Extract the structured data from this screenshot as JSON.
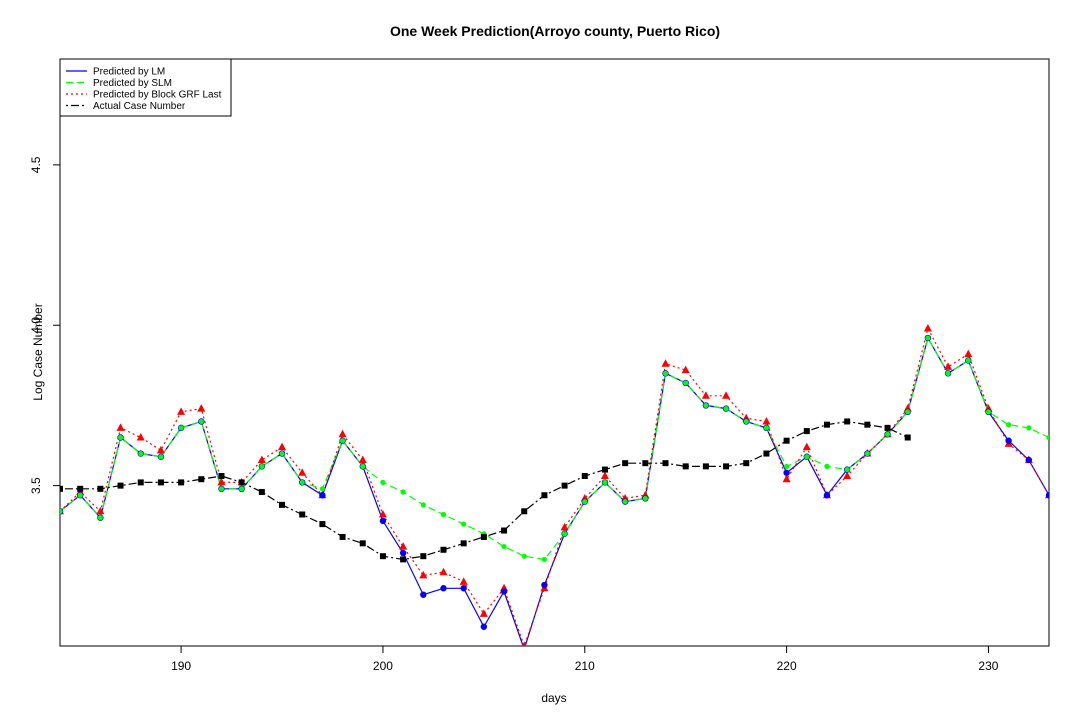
{
  "chart_data": {
    "type": "line",
    "title": "One Week Prediction(Arroyo county, Puerto Rico)",
    "xlabel": "days",
    "ylabel": "Log Case Number",
    "xlim": [
      184,
      233
    ],
    "ylim": [
      3.0,
      4.83
    ],
    "xticks": [
      190,
      200,
      210,
      220,
      230
    ],
    "yticks": [
      3.5,
      4.0,
      4.5
    ],
    "legend_position": "top-left",
    "x": [
      184,
      185,
      186,
      187,
      188,
      189,
      190,
      191,
      192,
      193,
      194,
      195,
      196,
      197,
      198,
      199,
      200,
      201,
      202,
      203,
      204,
      205,
      206,
      207,
      208,
      209,
      210,
      211,
      212,
      213,
      214,
      215,
      216,
      217,
      218,
      219,
      220,
      221,
      222,
      223,
      224,
      225,
      226,
      227,
      228,
      229,
      230,
      231,
      232,
      233
    ],
    "series": [
      {
        "name": "Predicted by LM",
        "color": "#0000ff",
        "line": "solid",
        "marker": "circle",
        "values": [
          3.42,
          3.47,
          3.4,
          3.65,
          3.6,
          3.59,
          3.68,
          3.7,
          3.49,
          3.49,
          3.56,
          3.6,
          3.51,
          3.47,
          3.64,
          3.56,
          3.39,
          3.29,
          3.16,
          3.18,
          3.18,
          3.06,
          3.17,
          2.99,
          3.19,
          3.35,
          3.45,
          3.51,
          3.45,
          3.46,
          3.85,
          3.82,
          3.75,
          3.74,
          3.7,
          3.68,
          3.54,
          3.59,
          3.47,
          3.55,
          3.6,
          3.66,
          3.73,
          3.96,
          3.85,
          3.89,
          3.73,
          3.64,
          3.58,
          3.47
        ]
      },
      {
        "name": "Predicted by SLM",
        "color": "#00ff00",
        "line": "dashed",
        "marker": "circle",
        "values": [
          3.42,
          3.47,
          3.4,
          3.65,
          3.6,
          3.59,
          3.68,
          3.7,
          3.49,
          3.49,
          3.56,
          3.6,
          3.51,
          3.49,
          3.64,
          3.56,
          3.51,
          3.48,
          3.44,
          3.41,
          3.38,
          3.35,
          3.31,
          3.28,
          3.27,
          3.35,
          3.45,
          3.51,
          3.45,
          3.46,
          3.85,
          3.82,
          3.75,
          3.74,
          3.7,
          3.68,
          3.56,
          3.59,
          3.56,
          3.55,
          3.6,
          3.66,
          3.73,
          3.96,
          3.85,
          3.89,
          3.73,
          3.69,
          3.68,
          3.65
        ]
      },
      {
        "name": "Predicted by Block GRF Last",
        "color": "#ff0000",
        "line": "dotted",
        "marker": "triangle",
        "values": [
          3.42,
          3.48,
          3.42,
          3.68,
          3.65,
          3.61,
          3.73,
          3.74,
          3.51,
          3.51,
          3.58,
          3.62,
          3.54,
          3.47,
          3.66,
          3.58,
          3.41,
          3.31,
          3.22,
          3.23,
          3.2,
          3.1,
          3.18,
          3.0,
          3.18,
          3.37,
          3.46,
          3.53,
          3.46,
          3.47,
          3.88,
          3.86,
          3.78,
          3.78,
          3.71,
          3.7,
          3.52,
          3.62,
          3.47,
          3.53,
          3.6,
          3.66,
          3.74,
          3.99,
          3.87,
          3.91,
          3.74,
          3.63,
          3.58,
          3.47
        ]
      },
      {
        "name": "Actual Case Number",
        "color": "#000000",
        "line": "dotdash",
        "marker": "square",
        "values": [
          3.49,
          3.49,
          3.49,
          3.5,
          3.51,
          3.51,
          3.51,
          3.52,
          3.53,
          3.51,
          3.48,
          3.44,
          3.41,
          3.38,
          3.34,
          3.32,
          3.28,
          3.27,
          3.28,
          3.3,
          3.32,
          3.34,
          3.36,
          3.42,
          3.47,
          3.5,
          3.53,
          3.55,
          3.57,
          3.57,
          3.57,
          3.56,
          3.56,
          3.56,
          3.57,
          3.6,
          3.64,
          3.67,
          3.69,
          3.7,
          3.69,
          3.68,
          3.65,
          null,
          null,
          null,
          null,
          null,
          null,
          null
        ]
      }
    ]
  }
}
